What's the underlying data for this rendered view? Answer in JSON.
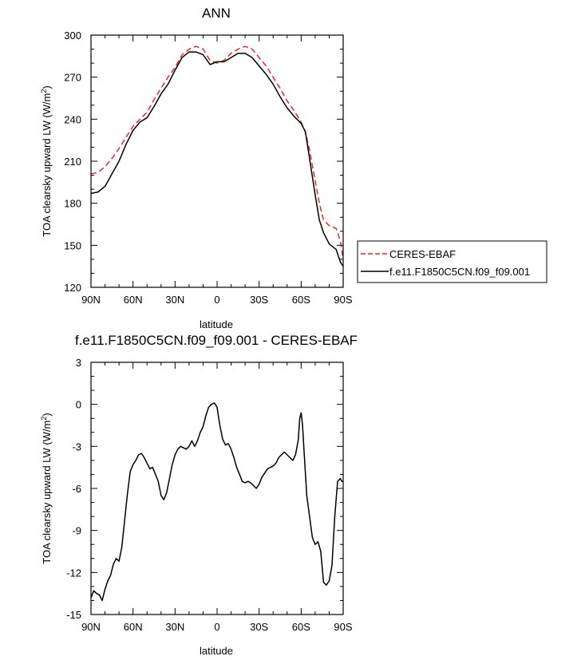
{
  "chart_data": [
    {
      "type": "line",
      "title": "ANN",
      "xlabel": "latitude",
      "ylabel": "TOA clearsky upward LW (W/m",
      "ylabel_sup": "2",
      "ylabel_tail": ")",
      "xlim": [
        -90,
        90
      ],
      "ylim": [
        120,
        300
      ],
      "x_ticks": [
        -90,
        -60,
        -30,
        0,
        30,
        60,
        90
      ],
      "x_tick_labels": [
        "90N",
        "60N",
        "30N",
        "0",
        "30S",
        "60S",
        "90S"
      ],
      "y_ticks": [
        120,
        150,
        180,
        210,
        240,
        270,
        300
      ],
      "y_tick_labels": [
        "120",
        "150",
        "180",
        "210",
        "240",
        "270",
        "300"
      ],
      "grid": false,
      "legend": "right",
      "series": [
        {
          "name": "CERES-EBAF",
          "color": "#e8262b",
          "dash": "dashed",
          "x": [
            -90,
            -85,
            -80,
            -75,
            -70,
            -65,
            -60,
            -55,
            -50,
            -45,
            -40,
            -35,
            -30,
            -25,
            -20,
            -15,
            -10,
            -5,
            0,
            5,
            10,
            15,
            20,
            25,
            30,
            35,
            40,
            45,
            50,
            55,
            60,
            63,
            66,
            70,
            73,
            76,
            80,
            85,
            88,
            90
          ],
          "y": [
            201,
            202,
            206,
            212,
            219,
            227,
            235,
            240,
            245,
            254,
            262,
            270,
            277,
            286,
            290,
            292,
            290,
            282,
            280,
            282,
            287,
            290,
            292,
            290,
            284,
            278,
            270,
            262,
            253,
            246,
            238,
            231,
            218,
            196,
            180,
            168,
            164,
            162,
            153,
            140
          ],
          "legend_label": "CERES-EBAF"
        },
        {
          "name": "f.e11.F1850C5CN.f09_f09.001",
          "color": "#000000",
          "dash": "solid",
          "x": [
            -90,
            -85,
            -80,
            -75,
            -70,
            -65,
            -60,
            -55,
            -50,
            -45,
            -40,
            -35,
            -30,
            -25,
            -20,
            -15,
            -10,
            -5,
            0,
            5,
            10,
            15,
            20,
            25,
            30,
            35,
            40,
            45,
            50,
            55,
            60,
            63,
            66,
            70,
            73,
            76,
            80,
            85,
            88,
            90
          ],
          "y": [
            187,
            188,
            192,
            201,
            210,
            222,
            232,
            238,
            241,
            249,
            258,
            265,
            275,
            284,
            288,
            288,
            286,
            279,
            281,
            281,
            284,
            287,
            287,
            284,
            278,
            272,
            265,
            256,
            248,
            242,
            237,
            231,
            212,
            186,
            168,
            159,
            151,
            147,
            138,
            135
          ],
          "legend_label": "f.e11.F1850C5CN.f09_f09.001"
        }
      ]
    },
    {
      "type": "line",
      "title": "f.e11.F1850C5CN.f09_f09.001 - CERES-EBAF",
      "xlabel": "latitude",
      "ylabel": "TOA clearsky upward LW (W/m",
      "ylabel_sup": "2",
      "ylabel_tail": ")",
      "xlim": [
        -90,
        90
      ],
      "ylim": [
        -15,
        3
      ],
      "x_ticks": [
        -90,
        -60,
        -30,
        0,
        30,
        60,
        90
      ],
      "x_tick_labels": [
        "90N",
        "60N",
        "30N",
        "0",
        "30S",
        "60S",
        "90S"
      ],
      "y_ticks": [
        -15,
        -12,
        -9,
        -6,
        -3,
        0,
        3
      ],
      "y_tick_labels": [
        "-15",
        "-12",
        "-9",
        "-6",
        "-3",
        "0",
        "3"
      ],
      "grid": false,
      "series": [
        {
          "color": "#000000",
          "dash": "solid",
          "x": [
            -90,
            -88,
            -86,
            -84,
            -82,
            -80,
            -78,
            -76,
            -74,
            -72,
            -70,
            -68,
            -66,
            -64,
            -62,
            -60,
            -58,
            -56,
            -54,
            -52,
            -50,
            -48,
            -46,
            -44,
            -42,
            -40,
            -38,
            -36,
            -34,
            -32,
            -30,
            -28,
            -26,
            -24,
            -22,
            -20,
            -18,
            -16,
            -14,
            -12,
            -10,
            -8,
            -6,
            -4,
            -2,
            0,
            1,
            2,
            4,
            6,
            8,
            10,
            12,
            14,
            16,
            18,
            20,
            22,
            24,
            26,
            28,
            30,
            32,
            34,
            36,
            38,
            40,
            42,
            44,
            46,
            48,
            50,
            52,
            54,
            56,
            58,
            59,
            60,
            61,
            62,
            64,
            66,
            68,
            70,
            72,
            74,
            76,
            78,
            80,
            82,
            84,
            86,
            88,
            89,
            90
          ],
          "y": [
            -13.8,
            -13.3,
            -13.5,
            -13.6,
            -14.0,
            -13.2,
            -12.6,
            -12.2,
            -11.4,
            -11.0,
            -11.2,
            -10.2,
            -8.3,
            -6.4,
            -4.8,
            -4.3,
            -4.0,
            -3.6,
            -3.5,
            -3.8,
            -4.2,
            -4.6,
            -4.5,
            -5.0,
            -5.5,
            -6.5,
            -6.8,
            -6.3,
            -5.3,
            -4.3,
            -3.6,
            -3.2,
            -3.0,
            -3.1,
            -3.2,
            -3.0,
            -2.6,
            -3.0,
            -2.6,
            -2.0,
            -1.6,
            -0.8,
            -0.2,
            0.0,
            0.1,
            -0.2,
            -0.9,
            -1.5,
            -2.5,
            -2.9,
            -2.8,
            -3.2,
            -3.8,
            -4.5,
            -5.0,
            -5.5,
            -5.6,
            -5.5,
            -5.6,
            -5.8,
            -6.0,
            -5.7,
            -5.2,
            -4.9,
            -4.6,
            -4.5,
            -4.4,
            -4.2,
            -3.8,
            -3.6,
            -3.4,
            -3.6,
            -3.8,
            -4.0,
            -3.6,
            -2.5,
            -1.0,
            -0.6,
            -1.5,
            -3.2,
            -6.5,
            -8.0,
            -9.5,
            -10.0,
            -9.8,
            -10.5,
            -12.7,
            -12.9,
            -12.6,
            -11.5,
            -8.0,
            -5.5,
            -5.3,
            -5.5,
            -5.5
          ]
        }
      ]
    }
  ]
}
